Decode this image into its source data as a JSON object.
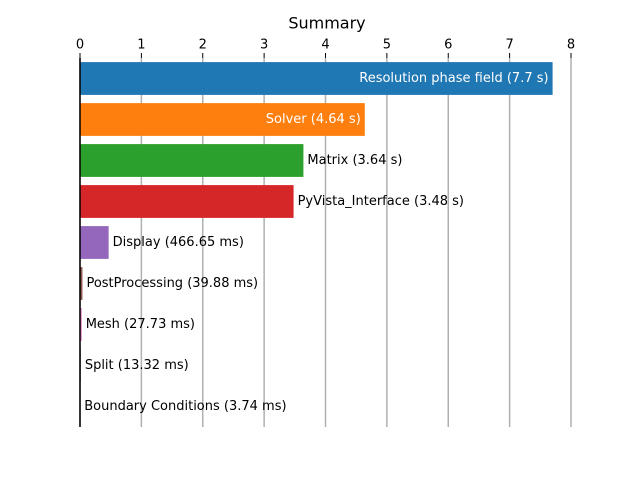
{
  "chart_data": {
    "type": "bar",
    "orientation": "horizontal",
    "title": "Summary",
    "values": [
      7.7,
      4.64,
      3.64,
      3.48,
      0.46665,
      0.03988,
      0.02773,
      0.01332,
      0.00374
    ],
    "value_labels": [
      "Resolution phase field (7.7 s)",
      "Solver (4.64 s)",
      "Matrix (3.64 s)",
      "PyVista_Interface (3.48 s)",
      "Display (466.65 ms)",
      "PostProcessing (39.88 ms)",
      "Mesh (27.73 ms)",
      "Split (13.32 ms)",
      "Boundary Conditions (3.74 ms)"
    ],
    "colors": [
      "#1f77b4",
      "#ff7f0e",
      "#2ca02c",
      "#d62728",
      "#9467bd",
      "#8c564b",
      "#e377c2",
      "#7f7f7f",
      "#bcbd22"
    ],
    "xlim": [
      0,
      8
    ],
    "xticks": [
      0,
      1,
      2,
      3,
      4,
      5,
      6,
      7,
      8
    ],
    "grid": true
  }
}
